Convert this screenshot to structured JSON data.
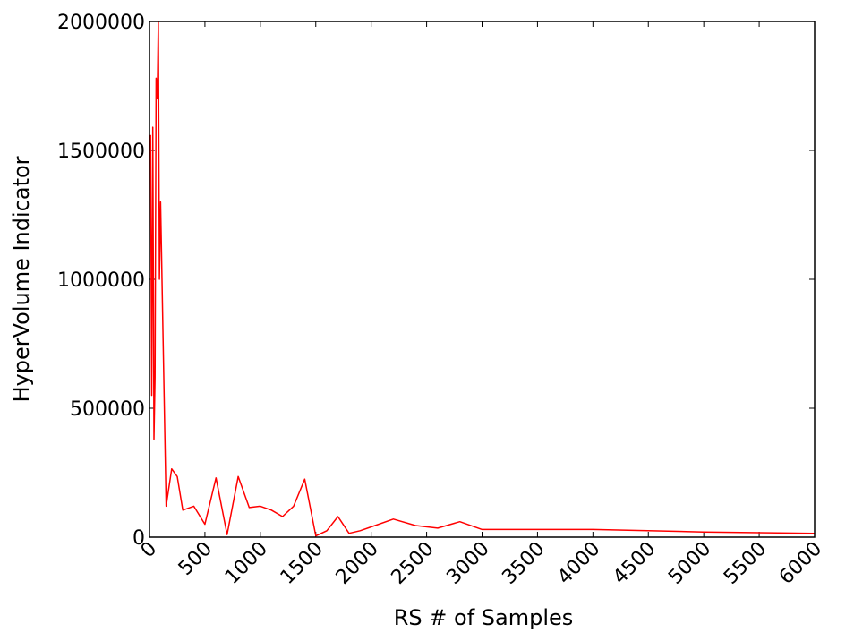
{
  "chart_data": {
    "type": "line",
    "title": "",
    "xlabel": "RS # of Samples",
    "ylabel": "HyperVolume Indicator",
    "xlim": [
      0,
      6000
    ],
    "ylim": [
      0,
      2000000
    ],
    "grid": false,
    "x_ticks": [
      "0",
      "500",
      "1000",
      "1500",
      "2000",
      "2500",
      "3000",
      "3500",
      "4000",
      "4500",
      "5000",
      "5500",
      "6000"
    ],
    "y_ticks": [
      "0",
      "500000",
      "1000000",
      "1500000",
      "2000000"
    ],
    "series": [
      {
        "color": "#ff0000",
        "x": [
          10,
          20,
          30,
          40,
          50,
          60,
          70,
          80,
          90,
          100,
          150,
          200,
          250,
          300,
          400,
          500,
          600,
          700,
          800,
          900,
          1000,
          1100,
          1200,
          1300,
          1400,
          1500,
          1600,
          1700,
          1800,
          1900,
          2000,
          2200,
          2400,
          2600,
          2800,
          3000,
          4000,
          5000,
          6000
        ],
        "y": [
          1560000,
          550000,
          1590000,
          380000,
          620000,
          1780000,
          1700000,
          2000000,
          1000000,
          1300000,
          120000,
          265000,
          235000,
          105000,
          120000,
          50000,
          230000,
          10000,
          235000,
          115000,
          120000,
          105000,
          80000,
          120000,
          225000,
          5000,
          25000,
          80000,
          15000,
          25000,
          40000,
          70000,
          45000,
          35000,
          60000,
          30000,
          30000,
          20000,
          15000
        ]
      }
    ]
  }
}
